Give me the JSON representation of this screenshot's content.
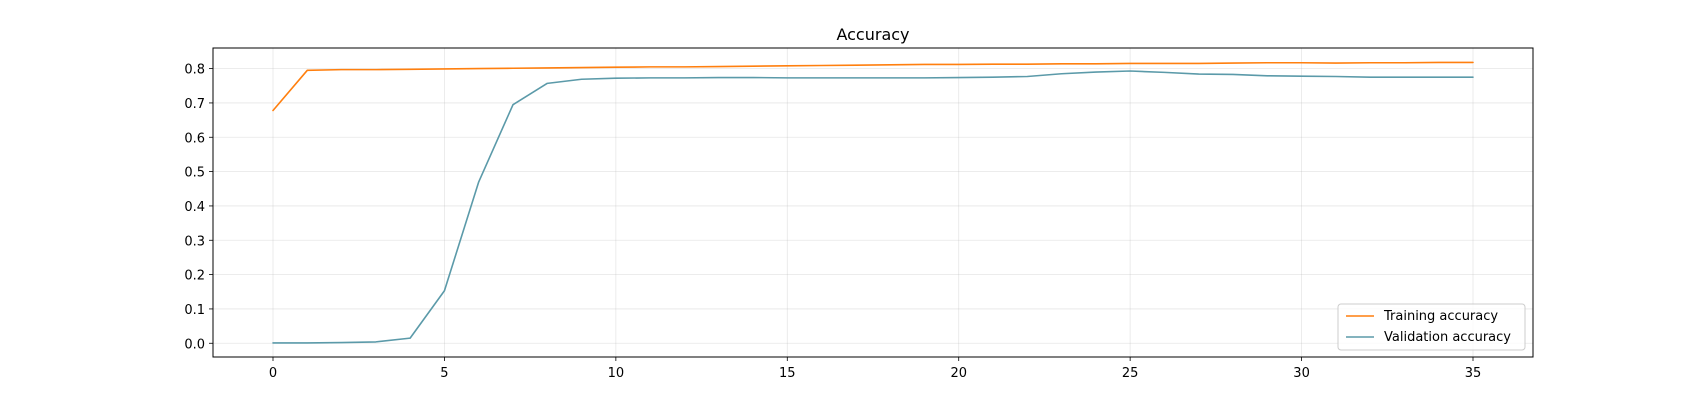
{
  "chart_data": {
    "type": "line",
    "title": "Accuracy",
    "xlabel": "",
    "ylabel": "",
    "xlim": [
      -1.75,
      36.75
    ],
    "ylim": [
      -0.04,
      0.86
    ],
    "xticks": [
      0,
      5,
      10,
      15,
      20,
      25,
      30,
      35
    ],
    "yticks": [
      0.0,
      0.1,
      0.2,
      0.3,
      0.4,
      0.5,
      0.6,
      0.7,
      0.8
    ],
    "ytick_labels": [
      "0.0",
      "0.1",
      "0.2",
      "0.3",
      "0.4",
      "0.5",
      "0.6",
      "0.7",
      "0.8"
    ],
    "grid": true,
    "legend_position": "lower right",
    "x": [
      0,
      1,
      2,
      3,
      4,
      5,
      6,
      7,
      8,
      9,
      10,
      11,
      12,
      13,
      14,
      15,
      16,
      17,
      18,
      19,
      20,
      21,
      22,
      23,
      24,
      25,
      26,
      27,
      28,
      29,
      30,
      31,
      32,
      33,
      34,
      35
    ],
    "series": [
      {
        "name": "Training accuracy",
        "color": "#ff7f0e",
        "values": [
          0.678,
          0.795,
          0.797,
          0.797,
          0.798,
          0.799,
          0.8,
          0.801,
          0.802,
          0.803,
          0.804,
          0.805,
          0.805,
          0.806,
          0.807,
          0.808,
          0.809,
          0.81,
          0.811,
          0.812,
          0.812,
          0.813,
          0.813,
          0.814,
          0.814,
          0.815,
          0.815,
          0.815,
          0.816,
          0.817,
          0.817,
          0.816,
          0.817,
          0.817,
          0.818,
          0.818
        ]
      },
      {
        "name": "Validation accuracy",
        "color": "#5b9aa9",
        "values": [
          0.001,
          0.001,
          0.002,
          0.004,
          0.015,
          0.153,
          0.47,
          0.695,
          0.757,
          0.769,
          0.772,
          0.773,
          0.773,
          0.774,
          0.774,
          0.773,
          0.773,
          0.773,
          0.773,
          0.773,
          0.774,
          0.775,
          0.777,
          0.785,
          0.79,
          0.793,
          0.789,
          0.784,
          0.783,
          0.779,
          0.778,
          0.777,
          0.775,
          0.775,
          0.775,
          0.775
        ]
      }
    ]
  }
}
